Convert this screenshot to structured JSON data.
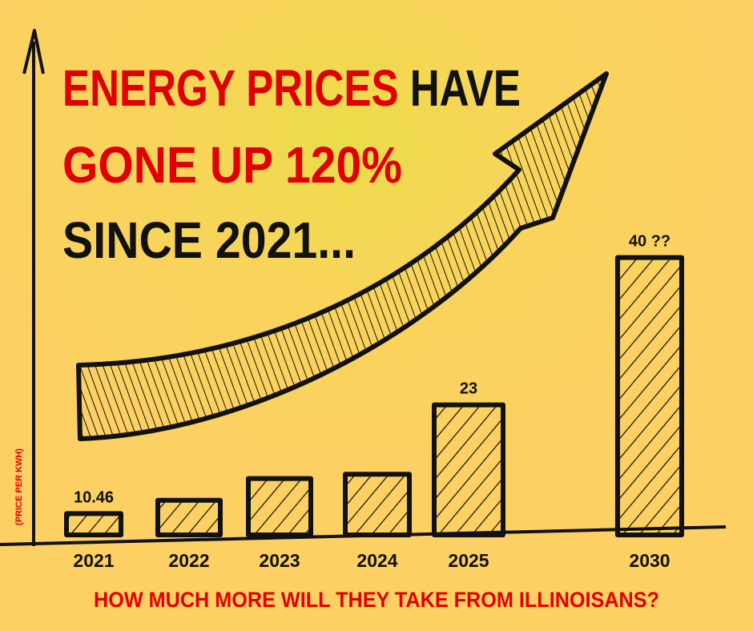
{
  "chart_data": {
    "type": "bar",
    "title_lines": [
      [
        {
          "text": "ENERGY PRICES",
          "color": "#e00000"
        },
        {
          "text": "HAVE",
          "color": "#111111"
        }
      ],
      [
        {
          "text": "GONE UP 120%",
          "color": "#e00000"
        }
      ],
      [
        {
          "text": "SINCE 2021...",
          "color": "#111111"
        }
      ]
    ],
    "y_label": "(PRICE PER KWH)",
    "subtitle": "HOW MUCH MORE WILL THEY TAKE FROM ILLINOISANS?",
    "categories": [
      "2021",
      "2022",
      "2023",
      "2024",
      "2025",
      "2030"
    ],
    "values": [
      10.46,
      12,
      14.5,
      15,
      23,
      40
    ],
    "value_labels": [
      "10.46",
      null,
      null,
      null,
      "23",
      "40 ??"
    ],
    "ylim": [
      8,
      42
    ]
  }
}
